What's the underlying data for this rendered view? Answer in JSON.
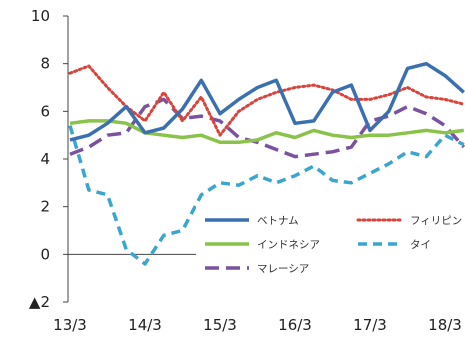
{
  "chart_data": {
    "type": "line",
    "title": "",
    "xlabel": "",
    "ylabel": "",
    "ylim": [
      -2,
      10
    ],
    "yticks": [
      10,
      8,
      6,
      4,
      2,
      0,
      -2
    ],
    "ytick_labels": [
      "10",
      "8",
      "6",
      "4",
      "2",
      "0",
      "▲2"
    ],
    "x": [
      "13/3",
      "13/6",
      "13/9",
      "13/12",
      "14/3",
      "14/6",
      "14/9",
      "14/12",
      "15/3",
      "15/6",
      "15/9",
      "15/12",
      "16/3",
      "16/6",
      "16/9",
      "16/12",
      "17/3",
      "17/6",
      "17/9",
      "17/12",
      "18/3",
      "18/6"
    ],
    "xtick_labels": [
      "13/3",
      "14/3",
      "15/3",
      "16/3",
      "17/3",
      "18/3"
    ],
    "xtick_index": [
      0,
      4,
      8,
      12,
      16,
      20
    ],
    "grid": false,
    "legend_position": "bottom-right",
    "series": [
      {
        "name": "ベトナム",
        "color": "#3a6fb0",
        "dash": "solid",
        "values": [
          4.8,
          5.0,
          5.5,
          6.2,
          5.1,
          5.3,
          6.1,
          7.3,
          5.9,
          6.5,
          7.0,
          7.3,
          5.5,
          5.6,
          6.8,
          7.1,
          5.2,
          6.0,
          7.8,
          8.0,
          7.5,
          6.8
        ]
      },
      {
        "name": "フィリピン",
        "color": "#d8433b",
        "dash": "dot",
        "values": [
          7.6,
          7.9,
          7.0,
          6.2,
          5.6,
          6.8,
          5.6,
          6.6,
          5.0,
          6.0,
          6.5,
          6.8,
          7.0,
          7.1,
          6.9,
          6.5,
          6.5,
          6.7,
          7.0,
          6.6,
          6.5,
          6.3
        ]
      },
      {
        "name": "インドネシア",
        "color": "#8ac34a",
        "dash": "solid",
        "values": [
          5.5,
          5.6,
          5.6,
          5.5,
          5.1,
          5.0,
          4.9,
          5.0,
          4.7,
          4.7,
          4.8,
          5.1,
          4.9,
          5.2,
          5.0,
          4.9,
          5.0,
          5.0,
          5.1,
          5.2,
          5.1,
          5.2
        ]
      },
      {
        "name": "タイ",
        "color": "#3aa6d0",
        "dash": "dash",
        "values": [
          5.4,
          2.7,
          2.5,
          0.2,
          -0.4,
          0.8,
          1.0,
          2.5,
          3.0,
          2.9,
          3.3,
          3.0,
          3.3,
          3.7,
          3.1,
          3.0,
          3.4,
          3.8,
          4.3,
          4.1,
          5.0,
          4.6
        ]
      },
      {
        "name": "マレーシア",
        "color": "#7b52a0",
        "dash": "longdash",
        "values": [
          4.2,
          4.5,
          5.0,
          5.1,
          6.2,
          6.5,
          5.7,
          5.8,
          5.6,
          4.9,
          4.7,
          4.4,
          4.1,
          4.2,
          4.3,
          4.5,
          5.6,
          5.8,
          6.2,
          5.9,
          5.4,
          4.5
        ]
      }
    ]
  }
}
